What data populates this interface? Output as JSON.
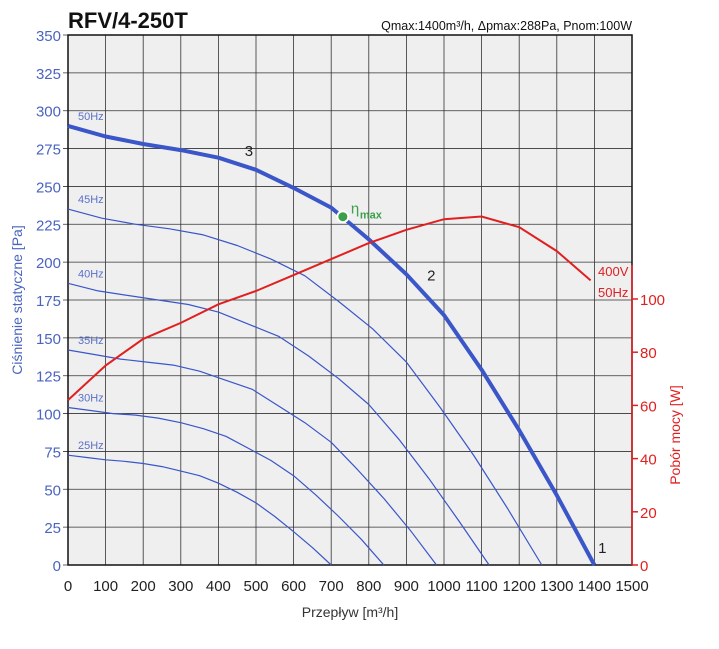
{
  "chart_data": {
    "type": "line",
    "title": "RFV/4-250T",
    "subtitle": "Qmax:1400m³/h, Δpmax:288Pa, Pnom:100W",
    "xlabel": "Przepływ [m³/h]",
    "ylabel": "Ciśnienie statyczne [Pa]",
    "y2label": "Pobór mocy [W]",
    "xlim": [
      0,
      1500
    ],
    "ylim": [
      0,
      350
    ],
    "y2lim": [
      0,
      199
    ],
    "xticks": [
      0,
      100,
      200,
      300,
      400,
      500,
      600,
      700,
      800,
      900,
      1000,
      1100,
      1200,
      1300,
      1400,
      1500
    ],
    "yticks": [
      0,
      25,
      50,
      75,
      100,
      125,
      150,
      175,
      200,
      225,
      250,
      275,
      300,
      325,
      350
    ],
    "y2ticks": [
      0,
      20,
      40,
      60,
      80,
      100
    ],
    "grid": true,
    "colors": {
      "pressure": "#3a56c8",
      "power": "#e02020",
      "eta": "#3aa04a",
      "axisLeft": "#4a64c0"
    },
    "series": [
      {
        "name": "50Hz",
        "x": [
          0,
          100,
          200,
          300,
          400,
          500,
          600,
          700,
          800,
          900,
          1000,
          1100,
          1200,
          1300,
          1400
        ],
        "y": [
          290,
          283,
          278,
          274,
          269,
          261,
          249,
          236,
          215,
          192,
          165,
          129,
          89,
          46,
          0
        ],
        "bold": true
      },
      {
        "name": "45Hz",
        "x": [
          0,
          90,
          180,
          270,
          360,
          450,
          540,
          630,
          720,
          810,
          900,
          990,
          1080,
          1170,
          1260
        ],
        "y": [
          235,
          229,
          225,
          222,
          218,
          211,
          202,
          191,
          174,
          156,
          134,
          104,
          72,
          37,
          0
        ]
      },
      {
        "name": "40Hz",
        "x": [
          0,
          80,
          160,
          240,
          320,
          400,
          480,
          560,
          640,
          720,
          800,
          880,
          960,
          1040,
          1120
        ],
        "y": [
          186,
          181,
          178,
          175,
          172,
          167,
          159,
          151,
          138,
          123,
          106,
          83,
          57,
          29,
          0
        ]
      },
      {
        "name": "35Hz",
        "x": [
          0,
          70,
          140,
          210,
          280,
          350,
          420,
          490,
          560,
          630,
          700,
          770,
          840,
          910,
          980
        ],
        "y": [
          142,
          139,
          136,
          134,
          132,
          128,
          122,
          116,
          105,
          94,
          81,
          63,
          44,
          23,
          0
        ]
      },
      {
        "name": "30Hz",
        "x": [
          0,
          60,
          120,
          180,
          240,
          300,
          360,
          420,
          480,
          540,
          600,
          660,
          720,
          780,
          840
        ],
        "y": [
          104,
          102,
          100,
          99,
          97,
          94,
          90,
          85,
          77,
          69,
          59,
          46,
          32,
          17,
          0
        ]
      },
      {
        "name": "25Hz",
        "x": [
          0,
          50,
          100,
          150,
          200,
          250,
          300,
          350,
          400,
          450,
          500,
          550,
          600,
          650,
          700
        ],
        "y": [
          72.5,
          71,
          69.5,
          68.5,
          67,
          65,
          62,
          59,
          54,
          48,
          41,
          32,
          22,
          11.5,
          0
        ]
      }
    ],
    "power": {
      "name1": "400V",
      "name2": "50Hz",
      "x": [
        0,
        100,
        200,
        300,
        400,
        500,
        600,
        700,
        800,
        900,
        1000,
        1100,
        1200,
        1300,
        1390
      ],
      "y": [
        62,
        75,
        85,
        91,
        98,
        103,
        109,
        115,
        121,
        126,
        130,
        131,
        127,
        118,
        107
      ]
    },
    "annotations": [
      {
        "text": "1",
        "x": 1410,
        "y": 8
      },
      {
        "text": "2",
        "x": 955,
        "y": 188
      },
      {
        "text": "3",
        "x": 470,
        "y": 270
      }
    ],
    "eta_max": {
      "label": "η",
      "sub": "max",
      "x": 731,
      "y": 230
    }
  }
}
